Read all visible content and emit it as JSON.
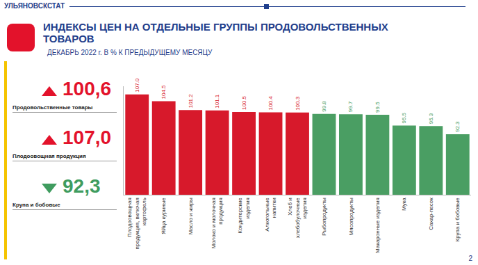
{
  "header": "УЛЬЯНОВСКСТАТ",
  "title": "ИНДЕКСЫ ЦЕН НА ОТДЕЛЬНЫЕ ГРУППЫ ПРОДОВОЛЬСТВЕННЫХ ТОВАРОВ",
  "subtitle": "ДЕКАБРЬ 2022 г. В % К ПРЕДЫДУЩЕМУ МЕСЯЦУ",
  "page": "2",
  "indicators": [
    {
      "label": "Продовольственные товары",
      "text": "100,6",
      "direction": "up",
      "color": "#e3122b"
    },
    {
      "label": "Плодоовощная продукция",
      "text": "107,0",
      "direction": "up",
      "color": "#e3122b"
    },
    {
      "label": "Крупа и бобовые",
      "text": "92,3",
      "direction": "down",
      "color": "#3f9c5f"
    }
  ],
  "chart_data": {
    "type": "bar",
    "categories": [
      "Плодоовощная продукция, включая картофель",
      "Яйца куриные",
      "Масло и жиры",
      "Молоко и молочная продукция",
      "Кондитерские изделия",
      "Алкогольные напитки",
      "Хлеб и хлебобулочные изделия",
      "Рыбопродукты",
      "Мясопродукты",
      "Макаронные изделия",
      "Мука",
      "Сахар-песок",
      "Крупа и бобовые"
    ],
    "values": [
      107.0,
      104.5,
      101.2,
      101.1,
      100.5,
      100.4,
      100.3,
      99.8,
      99.7,
      99.5,
      95.5,
      95.3,
      92.3
    ],
    "value_labels": [
      "107.0",
      "104.5",
      "101.2",
      "101.1",
      "100.5",
      "100.4",
      "100.3",
      "99.8",
      "99.7",
      "99.5",
      "95.5",
      "95.3",
      "92.3"
    ],
    "colors": [
      "#d7192b",
      "#d7192b",
      "#d7192b",
      "#d7192b",
      "#d7192b",
      "#d7192b",
      "#d7192b",
      "#4a9e63",
      "#4a9e63",
      "#4a9e63",
      "#4a9e63",
      "#4a9e63",
      "#4a9e63"
    ],
    "ylim": [
      70,
      110
    ],
    "data_labels": true,
    "tick_labels": "x",
    "grid": false
  }
}
